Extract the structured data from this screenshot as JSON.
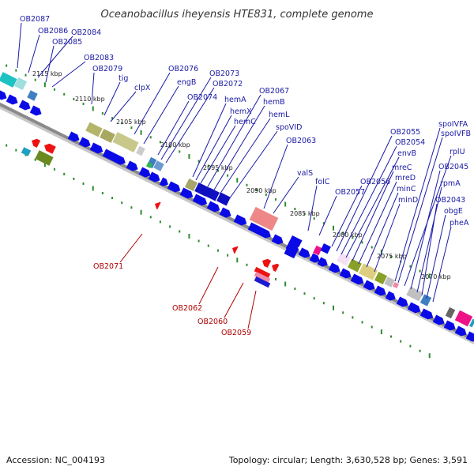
{
  "title": "Oceanobacillus iheyensis HTE831, complete genome",
  "footer": {
    "accession": "Accession: NC_004193",
    "summary": "Topology: circular; Length: 3,630,528 bp; Genes: 3,591"
  },
  "colors": {
    "forward_cds": "#0a0ae6",
    "reverse_cds": "#ee1111",
    "backbone": "#8a8a8a",
    "tick_green": "#2e8b2e",
    "label_blue": "#1a1aa6",
    "label_red": "#b00000"
  },
  "scale_labels": [
    "2115 kbp",
    "2110 kbp",
    "2105 kbp",
    "2100 kbp",
    "2095 kbp",
    "2090 kbp",
    "2085 kbp",
    "2080 kbp",
    "2075 kbp",
    "2070 kbp"
  ],
  "forward_genes": [
    "OB2087",
    "OB2086",
    "OB2084",
    "OB2085",
    "OB2083",
    "OB2079",
    "tig",
    "clpX",
    "OB2076",
    "engB",
    "OB2074",
    "OB2073",
    "OB2072",
    "hemA",
    "hemX",
    "hemC",
    "OB2067",
    "hemB",
    "hemL",
    "spoVID",
    "OB2063",
    "valS",
    "folC",
    "OB2057",
    "OB2056",
    "OB2055",
    "OB2054",
    "envB",
    "mreC",
    "mreD",
    "minC",
    "minD",
    "spoIVFA",
    "spoIVFB",
    "rplU",
    "OB2045",
    "rpmA",
    "OB2043",
    "obgE",
    "pheA"
  ],
  "reverse_genes": [
    "OB2071",
    "OB2062",
    "OB2060",
    "OB2059"
  ]
}
